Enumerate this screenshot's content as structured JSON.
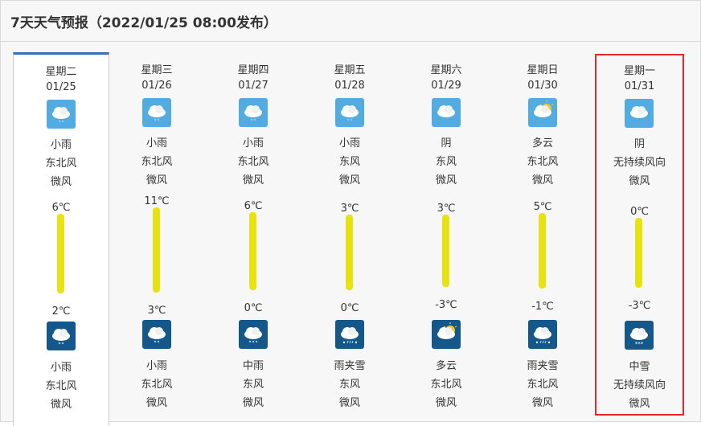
{
  "title": "7天天气预报（2022/01/25 08:00发布）",
  "colors": {
    "bar": "#e8e30f",
    "active_border": "#3a6fb5",
    "selected_outline": "#e6262b",
    "day_icon_bg": "#52ace2",
    "night_icon_bg": "#14578a"
  },
  "days": [
    {
      "weekday": "星期二",
      "date": "01/25",
      "day_icon": "light-rain-icon",
      "day_weather": "小雨",
      "day_wind_dir": "东北风",
      "day_wind": "微风",
      "high": "6℃",
      "high_val": 6,
      "low": "2℃",
      "low_val": 2,
      "night_icon": "light-rain-icon",
      "night_weather": "小雨",
      "night_wind_dir": "东北风",
      "night_wind": "微风"
    },
    {
      "weekday": "星期三",
      "date": "01/26",
      "day_icon": "light-rain-icon",
      "day_weather": "小雨",
      "day_wind_dir": "东北风",
      "day_wind": "微风",
      "high": "11℃",
      "high_val": 11,
      "low": "3℃",
      "low_val": 3,
      "night_icon": "light-rain-icon",
      "night_weather": "小雨",
      "night_wind_dir": "东北风",
      "night_wind": "微风"
    },
    {
      "weekday": "星期四",
      "date": "01/27",
      "day_icon": "light-rain-icon",
      "day_weather": "小雨",
      "day_wind_dir": "东北风",
      "day_wind": "微风",
      "high": "6℃",
      "high_val": 6,
      "low": "0℃",
      "low_val": 0,
      "night_icon": "moderate-rain-icon",
      "night_weather": "中雨",
      "night_wind_dir": "东风",
      "night_wind": "微风"
    },
    {
      "weekday": "星期五",
      "date": "01/28",
      "day_icon": "light-rain-icon",
      "day_weather": "小雨",
      "day_wind_dir": "东风",
      "day_wind": "微风",
      "high": "3℃",
      "high_val": 3,
      "low": "0℃",
      "low_val": 0,
      "night_icon": "sleet-icon",
      "night_weather": "雨夹雪",
      "night_wind_dir": "东风",
      "night_wind": "微风"
    },
    {
      "weekday": "星期六",
      "date": "01/29",
      "day_icon": "overcast-icon",
      "day_weather": "阴",
      "day_wind_dir": "东风",
      "day_wind": "微风",
      "high": "3℃",
      "high_val": 3,
      "low": "-3℃",
      "low_val": -3,
      "night_icon": "partly-cloudy-icon",
      "night_weather": "多云",
      "night_wind_dir": "东北风",
      "night_wind": "微风"
    },
    {
      "weekday": "星期日",
      "date": "01/30",
      "day_icon": "partly-cloudy-icon",
      "day_weather": "多云",
      "day_wind_dir": "东北风",
      "day_wind": "微风",
      "high": "5℃",
      "high_val": 5,
      "low": "-1℃",
      "low_val": -1,
      "night_icon": "sleet-icon",
      "night_weather": "雨夹雪",
      "night_wind_dir": "东北风",
      "night_wind": "微风"
    },
    {
      "weekday": "星期一",
      "date": "01/31",
      "day_icon": "overcast-icon",
      "day_weather": "阴",
      "day_wind_dir": "无持续风向",
      "day_wind": "微风",
      "high": "0℃",
      "high_val": 0,
      "low": "-3℃",
      "low_val": -3,
      "night_icon": "moderate-snow-icon",
      "night_weather": "中雪",
      "night_wind_dir": "无持续风向",
      "night_wind": "微风"
    }
  ]
}
